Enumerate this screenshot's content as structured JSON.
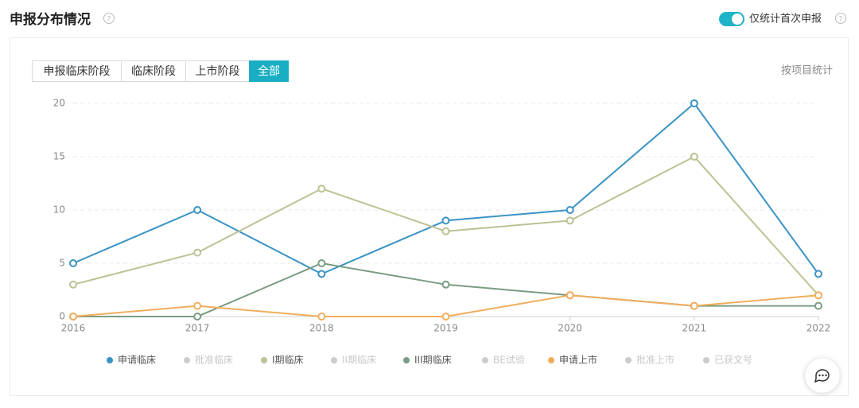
{
  "header": {
    "title": "申报分布情况",
    "toggle_label": "仅统计首次申报",
    "toggle_on": true
  },
  "tabs": {
    "items": [
      "申报临床阶段",
      "临床阶段",
      "上市阶段",
      "全部"
    ],
    "active": 3
  },
  "link": "按项目统计",
  "chart_data": {
    "type": "line",
    "x": [
      2016,
      2017,
      2018,
      2019,
      2020,
      2021,
      2022
    ],
    "xlim": [
      2016,
      2022
    ],
    "xticks": [
      2016,
      2017,
      2018,
      2019,
      2020,
      2021,
      2022
    ],
    "ylim": [
      0,
      20
    ],
    "yticks": [
      0,
      5,
      10,
      15,
      20
    ],
    "grid": true,
    "series": [
      {
        "name": "申请临床",
        "color": "#3a93c4",
        "values": [
          5,
          10,
          4,
          9,
          10,
          20,
          4
        ]
      },
      {
        "name": "批准临床",
        "color": "#cccccc",
        "hidden": true
      },
      {
        "name": "I期临床",
        "color": "#bcc294",
        "values": [
          3,
          6,
          12,
          8,
          9,
          15,
          2
        ]
      },
      {
        "name": "II期临床",
        "color": "#cccccc",
        "hidden": true
      },
      {
        "name": "III期临床",
        "color": "#7a9c82",
        "values": [
          0,
          0,
          5,
          3,
          2,
          1,
          1
        ]
      },
      {
        "name": "BE试验",
        "color": "#cccccc",
        "hidden": true
      },
      {
        "name": "申请上市",
        "color": "#f2ad5c",
        "values": [
          0,
          1,
          0,
          0,
          2,
          1,
          2
        ]
      },
      {
        "name": "批准上市",
        "color": "#cccccc",
        "hidden": true
      },
      {
        "name": "已获文号",
        "color": "#cccccc",
        "hidden": true
      }
    ]
  }
}
